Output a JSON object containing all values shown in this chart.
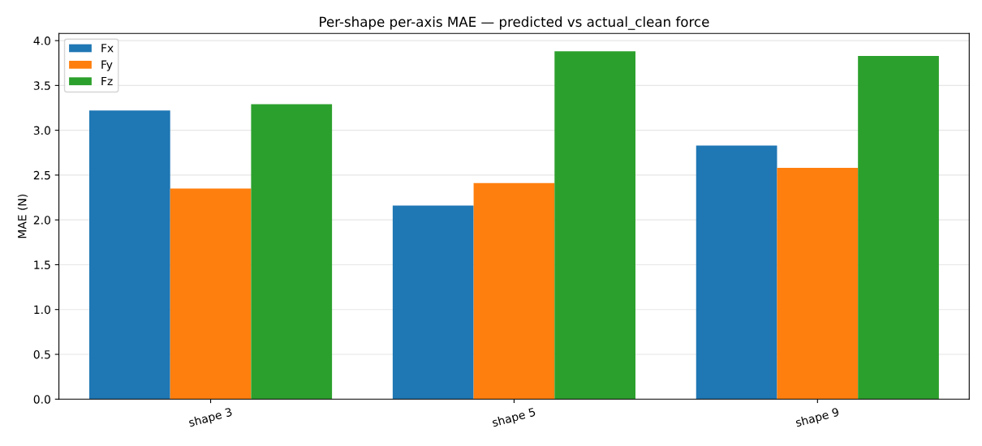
{
  "chart_data": {
    "type": "bar",
    "title": "Per-shape per-axis MAE — predicted vs actual_clean force",
    "ylabel": "MAE (N)",
    "categories": [
      "shape 3",
      "shape 5",
      "shape 9"
    ],
    "series": [
      {
        "name": "Fx",
        "color": "#1f77b4",
        "values": [
          3.22,
          2.16,
          2.83
        ]
      },
      {
        "name": "Fy",
        "color": "#ff7f0e",
        "values": [
          2.35,
          2.41,
          2.58
        ]
      },
      {
        "name": "Fz",
        "color": "#2ca02c",
        "values": [
          3.29,
          3.88,
          3.83
        ]
      }
    ],
    "ylim": [
      0,
      4.08
    ],
    "yticks": [
      {
        "value": 0,
        "label": "0.0"
      },
      {
        "value": 0.5,
        "label": "0.5"
      },
      {
        "value": 1,
        "label": "1.0"
      },
      {
        "value": 1.5,
        "label": "1.5"
      },
      {
        "value": 2,
        "label": "2.0"
      },
      {
        "value": 2.5,
        "label": "2.5"
      },
      {
        "value": 3,
        "label": "3.0"
      },
      {
        "value": 3.5,
        "label": "3.5"
      },
      {
        "value": 4,
        "label": "4.0"
      }
    ],
    "grid": "y",
    "legend": "top left"
  }
}
